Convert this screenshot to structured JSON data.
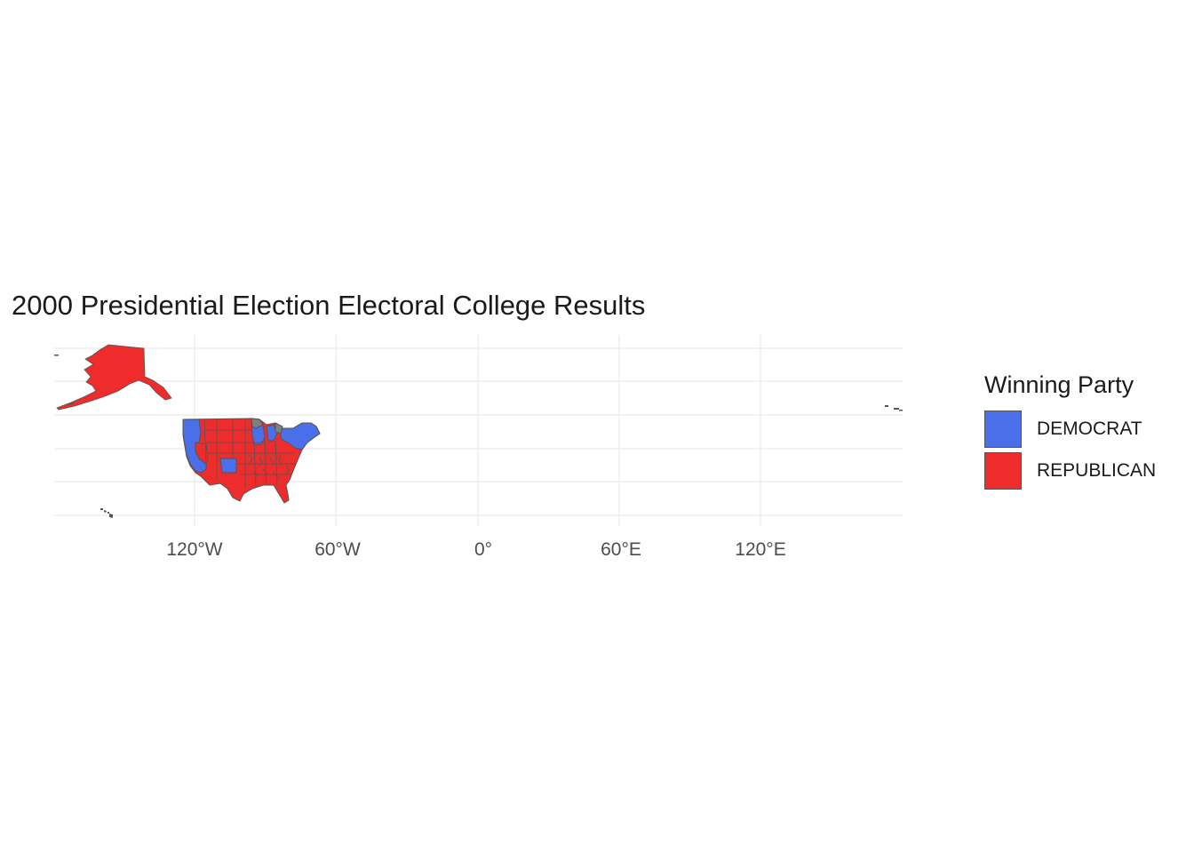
{
  "map": {
    "title": "2000 Presidential Election Electoral College Results",
    "x_ticks": [
      "120°W",
      "60°W",
      "0°",
      "60°E",
      "120°E"
    ],
    "legend": {
      "title": "Winning Party",
      "items": [
        {
          "label": "DEMOCRAT",
          "color": "#4a6fe8"
        },
        {
          "label": "REPUBLICAN",
          "color": "#ee2c2c"
        }
      ]
    },
    "colors": {
      "democrat": "#4a6fe8",
      "republican": "#ee2c2c",
      "no_data": "#808080",
      "border": "#555555",
      "grid": "#ebebeb",
      "background": "#ffffff"
    },
    "projection": "longitude/latitude (equirectangular)",
    "regions_shown": [
      "Alaska",
      "Contiguous United States",
      "Hawaii",
      "Aleutian Islands (east of 180°)"
    ]
  }
}
